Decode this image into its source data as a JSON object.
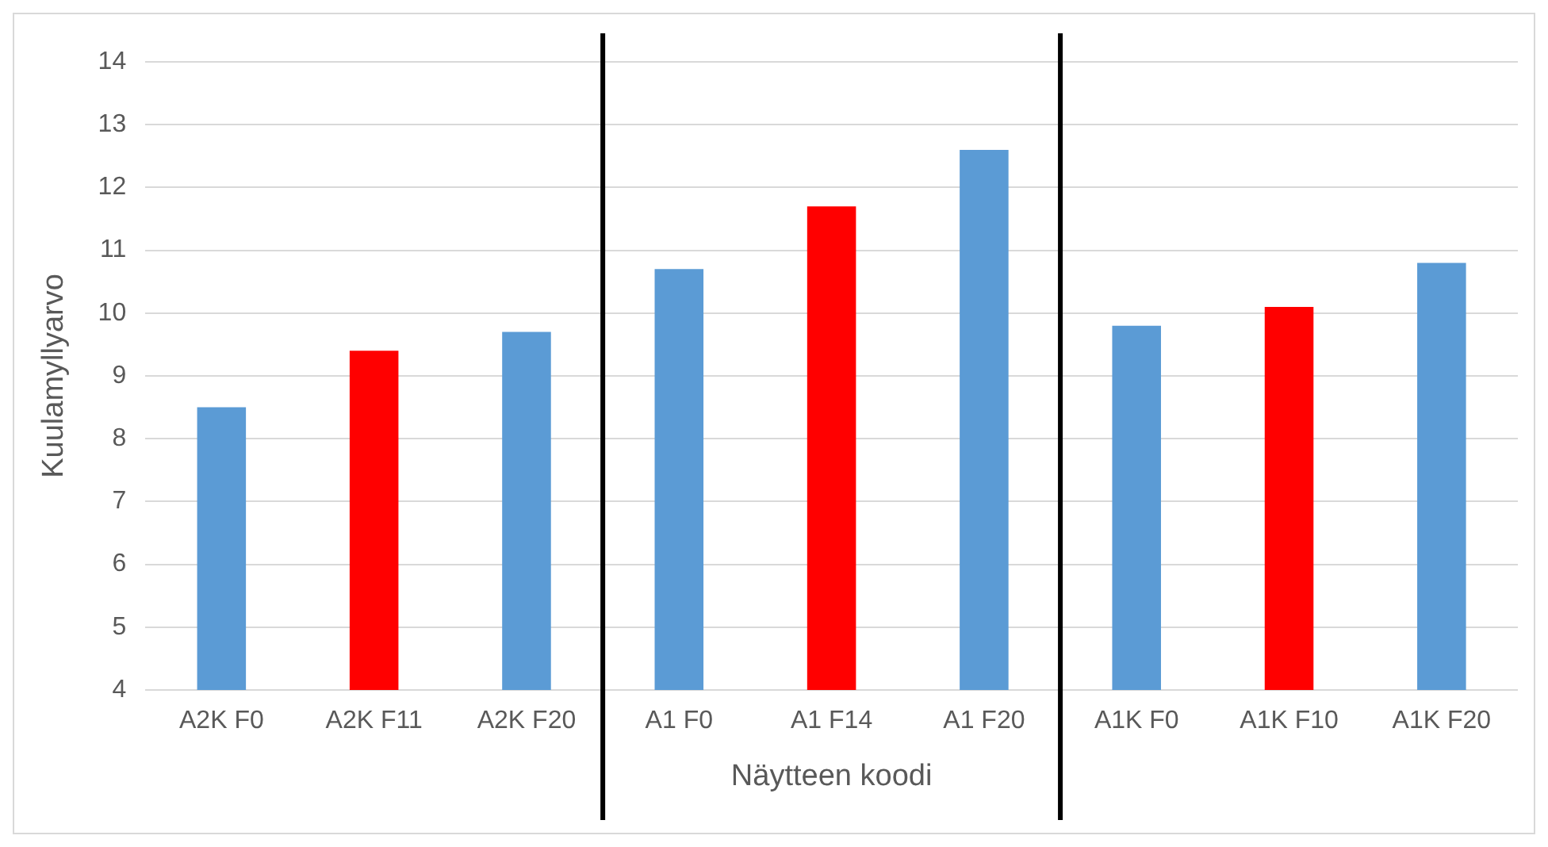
{
  "chart_data": {
    "type": "bar",
    "xlabel": "Näytteen koodi",
    "ylabel": "Kuulamyllyarvo",
    "categories": [
      "A2K F0",
      "A2K F11",
      "A2K F20",
      "A1 F0",
      "A1 F14",
      "A1 F20",
      "A1K F0",
      "A1K F10",
      "A1K F20"
    ],
    "values": [
      8.5,
      9.4,
      9.7,
      10.7,
      11.7,
      12.6,
      9.8,
      10.1,
      10.8
    ],
    "colors": [
      "#5b9bd5",
      "#ff0000",
      "#5b9bd5",
      "#5b9bd5",
      "#ff0000",
      "#5b9bd5",
      "#5b9bd5",
      "#ff0000",
      "#5b9bd5"
    ],
    "ylim": [
      4,
      14
    ],
    "yticks": [
      4,
      5,
      6,
      7,
      8,
      9,
      10,
      11,
      12,
      13,
      14
    ],
    "grid": "y",
    "legend": false
  }
}
